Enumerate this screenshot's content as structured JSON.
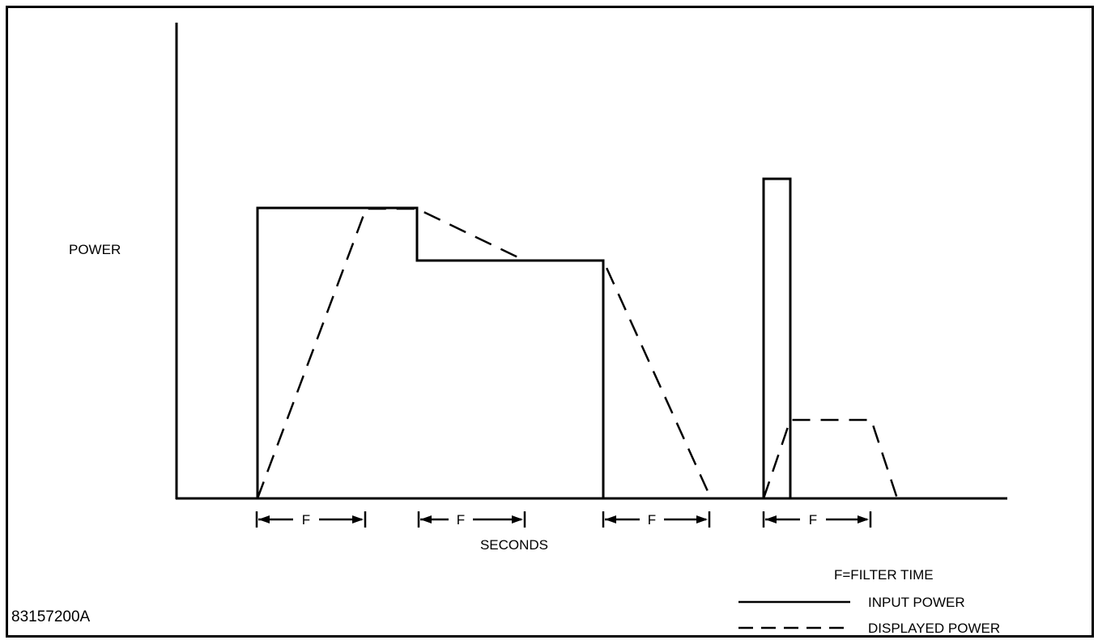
{
  "figure": {
    "figure_id": "83157200A",
    "y_axis_label": "POWER",
    "x_axis_label": "SECONDS",
    "filter_marker_label": "F",
    "filter_marker_count": 4
  },
  "legend": {
    "title": "F=FILTER TIME",
    "items": [
      {
        "label": "INPUT POWER",
        "style": "solid"
      },
      {
        "label": "DISPLAYED POWER",
        "style": "dashed"
      }
    ]
  },
  "colors": {
    "line": "#000000",
    "background": "#ffffff"
  }
}
